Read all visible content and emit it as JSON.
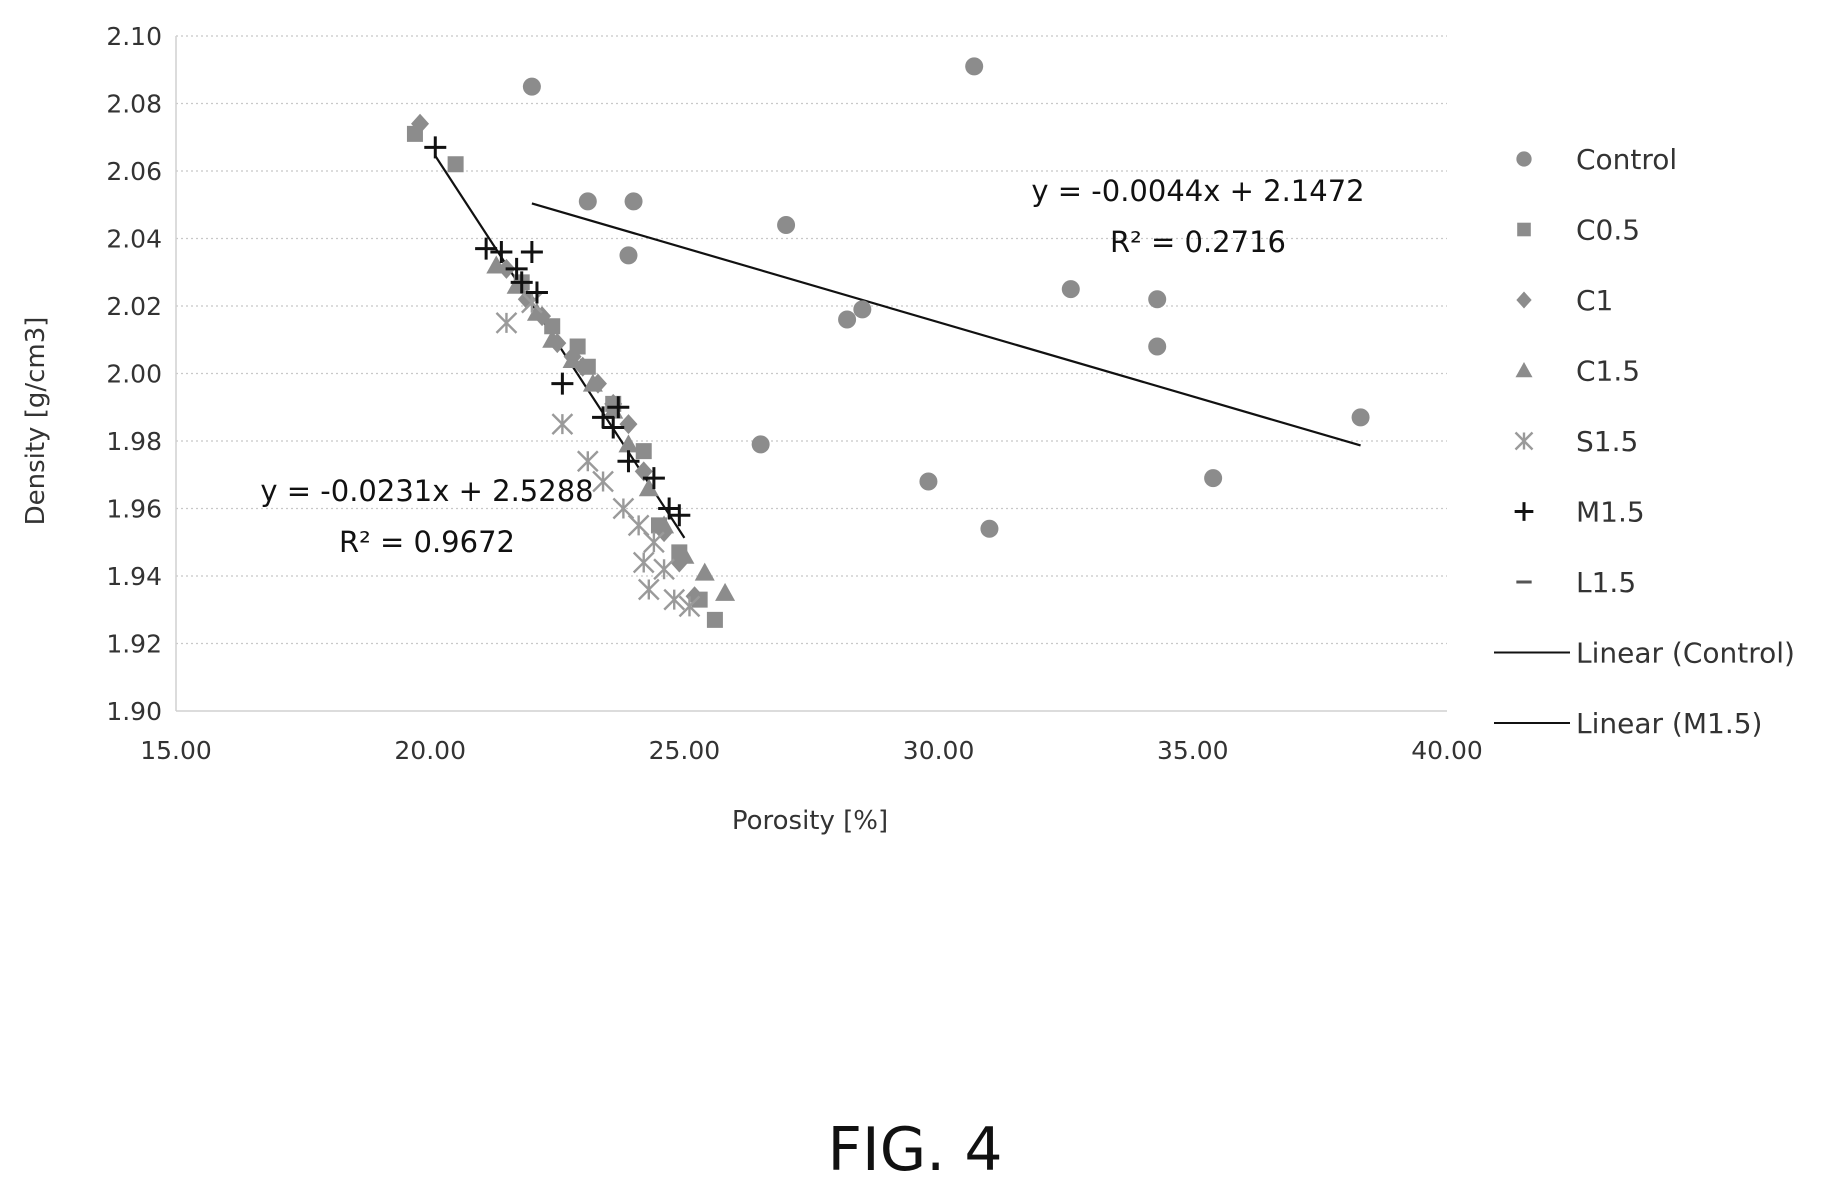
{
  "figure_label": "FIG. 4",
  "colors": {
    "marker": "#8c8c8c",
    "plus": "#111111",
    "line": "#111111",
    "grid": "#c8c8c8",
    "text": "#333333"
  },
  "chart_data": {
    "type": "scatter",
    "title": "",
    "xlabel": "Porosity [%]",
    "ylabel": "Density [g/cm3]",
    "xlim": [
      15,
      40
    ],
    "ylim": [
      1.9,
      2.1
    ],
    "x_ticks": [
      "15.00",
      "20.00",
      "25.00",
      "30.00",
      "35.00",
      "40.00"
    ],
    "y_ticks": [
      "1.90",
      "1.92",
      "1.94",
      "1.96",
      "1.98",
      "2.00",
      "2.02",
      "2.04",
      "2.06",
      "2.08",
      "2.10"
    ],
    "grid": "horizontal dotted",
    "legend_position": "right",
    "series": [
      {
        "name": "Control",
        "marker": "circle",
        "points": [
          [
            22.0,
            2.085
          ],
          [
            30.7,
            2.091
          ],
          [
            23.1,
            2.051
          ],
          [
            24.0,
            2.051
          ],
          [
            27.0,
            2.044
          ],
          [
            23.9,
            2.035
          ],
          [
            32.6,
            2.025
          ],
          [
            34.3,
            2.022
          ],
          [
            28.2,
            2.016
          ],
          [
            28.5,
            2.019
          ],
          [
            34.3,
            2.008
          ],
          [
            38.3,
            1.987
          ],
          [
            26.5,
            1.979
          ],
          [
            29.8,
            1.968
          ],
          [
            35.4,
            1.969
          ],
          [
            31.0,
            1.954
          ]
        ]
      },
      {
        "name": "C0.5",
        "marker": "square",
        "points": [
          [
            19.7,
            2.071
          ],
          [
            20.5,
            2.062
          ],
          [
            21.8,
            2.027
          ],
          [
            22.4,
            2.014
          ],
          [
            22.9,
            2.008
          ],
          [
            23.1,
            2.002
          ],
          [
            23.6,
            1.991
          ],
          [
            24.2,
            1.977
          ],
          [
            24.5,
            1.955
          ],
          [
            24.9,
            1.947
          ],
          [
            25.3,
            1.933
          ],
          [
            25.6,
            1.927
          ]
        ]
      },
      {
        "name": "C1",
        "marker": "diamond",
        "points": [
          [
            19.8,
            2.074
          ],
          [
            21.5,
            2.031
          ],
          [
            21.9,
            2.022
          ],
          [
            22.2,
            2.017
          ],
          [
            22.5,
            2.009
          ],
          [
            22.8,
            2.005
          ],
          [
            23.0,
            2.002
          ],
          [
            23.3,
            1.997
          ],
          [
            23.6,
            1.991
          ],
          [
            23.9,
            1.985
          ],
          [
            24.2,
            1.971
          ],
          [
            24.6,
            1.953
          ],
          [
            24.9,
            1.944
          ],
          [
            25.2,
            1.934
          ]
        ]
      },
      {
        "name": "C1.5",
        "marker": "triangle",
        "points": [
          [
            21.3,
            2.032
          ],
          [
            21.7,
            2.026
          ],
          [
            22.1,
            2.018
          ],
          [
            22.4,
            2.01
          ],
          [
            22.8,
            2.004
          ],
          [
            23.2,
            1.997
          ],
          [
            23.6,
            1.989
          ],
          [
            23.9,
            1.979
          ],
          [
            24.3,
            1.966
          ],
          [
            24.6,
            1.955
          ],
          [
            25.0,
            1.946
          ],
          [
            25.4,
            1.941
          ],
          [
            25.8,
            1.935
          ]
        ]
      },
      {
        "name": "S1.5",
        "marker": "asterisk",
        "points": [
          [
            21.5,
            2.015
          ],
          [
            22.0,
            2.021
          ],
          [
            22.6,
            1.985
          ],
          [
            23.1,
            1.974
          ],
          [
            23.4,
            1.968
          ],
          [
            23.8,
            1.96
          ],
          [
            24.1,
            1.955
          ],
          [
            24.4,
            1.95
          ],
          [
            24.2,
            1.944
          ],
          [
            24.6,
            1.942
          ],
          [
            24.3,
            1.936
          ],
          [
            24.8,
            1.933
          ],
          [
            25.1,
            1.931
          ]
        ]
      },
      {
        "name": "M1.5",
        "marker": "plus",
        "points": [
          [
            20.1,
            2.067
          ],
          [
            21.1,
            2.037
          ],
          [
            21.4,
            2.036
          ],
          [
            21.7,
            2.031
          ],
          [
            22.0,
            2.036
          ],
          [
            21.8,
            2.027
          ],
          [
            22.1,
            2.024
          ],
          [
            22.6,
            1.997
          ],
          [
            23.4,
            1.987
          ],
          [
            23.6,
            1.984
          ],
          [
            23.7,
            1.99
          ],
          [
            23.9,
            1.974
          ],
          [
            24.4,
            1.969
          ],
          [
            24.7,
            1.96
          ],
          [
            24.9,
            1.958
          ]
        ]
      },
      {
        "name": "L1.5",
        "marker": "dash",
        "points": []
      },
      {
        "name": "Linear (Control)",
        "marker": "line",
        "equation": "y = -0.0044x + 2.1472",
        "r2": "R² = 0.2716",
        "x_range": [
          22.0,
          38.3
        ]
      },
      {
        "name": "Linear (M1.5)",
        "marker": "line",
        "equation": "y = -0.0231x + 2.5288",
        "r2": "R² = 0.9672",
        "x_range": [
          20.1,
          25.0
        ]
      }
    ],
    "annotations": {
      "control_equation": "y = -0.0044x + 2.1472",
      "control_r2": "R² = 0.2716",
      "m15_equation": "y = -0.0231x + 2.5288",
      "m15_r2": "R² = 0.9672"
    }
  }
}
